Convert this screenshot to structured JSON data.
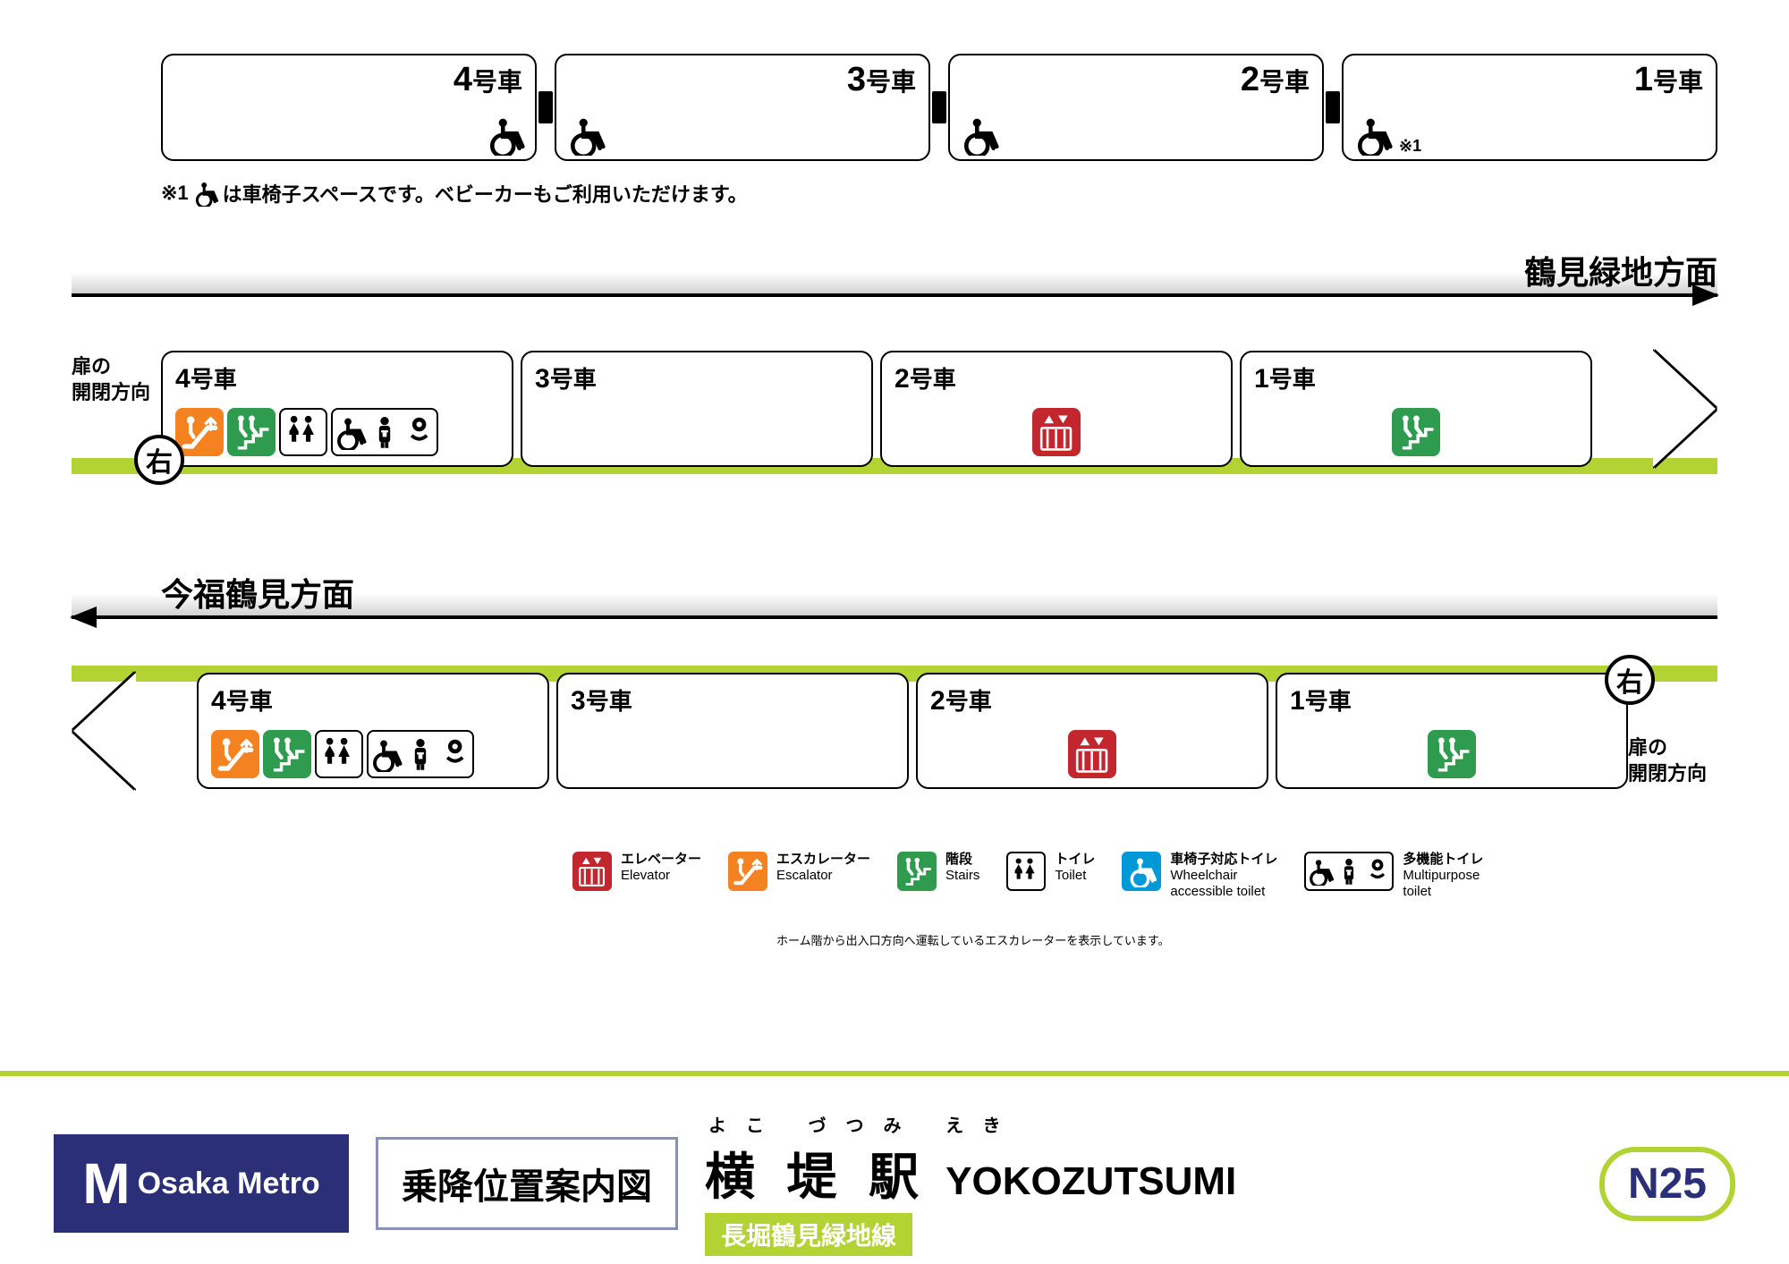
{
  "colors": {
    "line": "#b3d334",
    "elevator": "#c1272d",
    "escalator": "#f58220",
    "stairs": "#2e9b4f",
    "toilet_m": "#0099d8",
    "toilet_f": "#e85298",
    "accessible": "#0099d8",
    "logo_bg": "#2b2f78",
    "boxlabel_border": "#9fa3c7"
  },
  "cars": [
    {
      "num": "4",
      "suffix": "号車",
      "wc_side": "right"
    },
    {
      "num": "3",
      "suffix": "号車",
      "wc_side": "left"
    },
    {
      "num": "2",
      "suffix": "号車",
      "wc_side": "left"
    },
    {
      "num": "1",
      "suffix": "号車",
      "wc_side": "left",
      "note": "※1"
    }
  ],
  "note1_prefix": "※1",
  "note1_text": "は車椅子スペースです。ベビーカーもご利用いただけます。",
  "direction1": "鶴見緑地方面",
  "direction2": "今福鶴見方面",
  "door_label": "扉の\n開閉方向",
  "migi": "右",
  "platform1": [
    {
      "label_num": "4",
      "label_suf": "号車",
      "icons": [
        "escalator",
        "stairs",
        "toilet",
        "multi"
      ]
    },
    {
      "label_num": "3",
      "label_suf": "号車",
      "icons": []
    },
    {
      "label_num": "2",
      "label_suf": "号車",
      "icons": [
        "elevator"
      ],
      "center": true
    },
    {
      "label_num": "1",
      "label_suf": "号車",
      "icons": [
        "stairs"
      ],
      "center": true
    }
  ],
  "platform2": [
    {
      "label_num": "4",
      "label_suf": "号車",
      "icons": [
        "escalator",
        "stairs",
        "toilet",
        "multi"
      ]
    },
    {
      "label_num": "3",
      "label_suf": "号車",
      "icons": []
    },
    {
      "label_num": "2",
      "label_suf": "号車",
      "icons": [
        "elevator"
      ],
      "center": true
    },
    {
      "label_num": "1",
      "label_suf": "号車",
      "icons": [
        "stairs"
      ],
      "center": true
    }
  ],
  "legend": [
    {
      "icon": "elevator",
      "jp": "エレベーター",
      "en": "Elevator"
    },
    {
      "icon": "escalator",
      "jp": "エスカレーター",
      "en": "Escalator"
    },
    {
      "icon": "stairs",
      "jp": "階段",
      "en": "Stairs"
    },
    {
      "icon": "toilet",
      "jp": "トイレ",
      "en": "Toilet"
    },
    {
      "icon": "accessible",
      "jp": "車椅子対応トイレ",
      "en": "Wheelchair\naccessible toilet"
    },
    {
      "icon": "multi",
      "jp": "多機能トイレ",
      "en": "Multipurpose\ntoilet"
    }
  ],
  "legend_note": "ホーム階から出入口方向へ運転しているエスカレーターを表示しています。",
  "footer": {
    "brand": "Osaka Metro",
    "box_label": "乗降位置案内図",
    "ruby": "よこ づつみ えき",
    "kanji": "横 堤 駅",
    "roman": "YOKOZUTSUMI",
    "line_name": "長堀鶴見緑地線",
    "station_num": "N25"
  }
}
